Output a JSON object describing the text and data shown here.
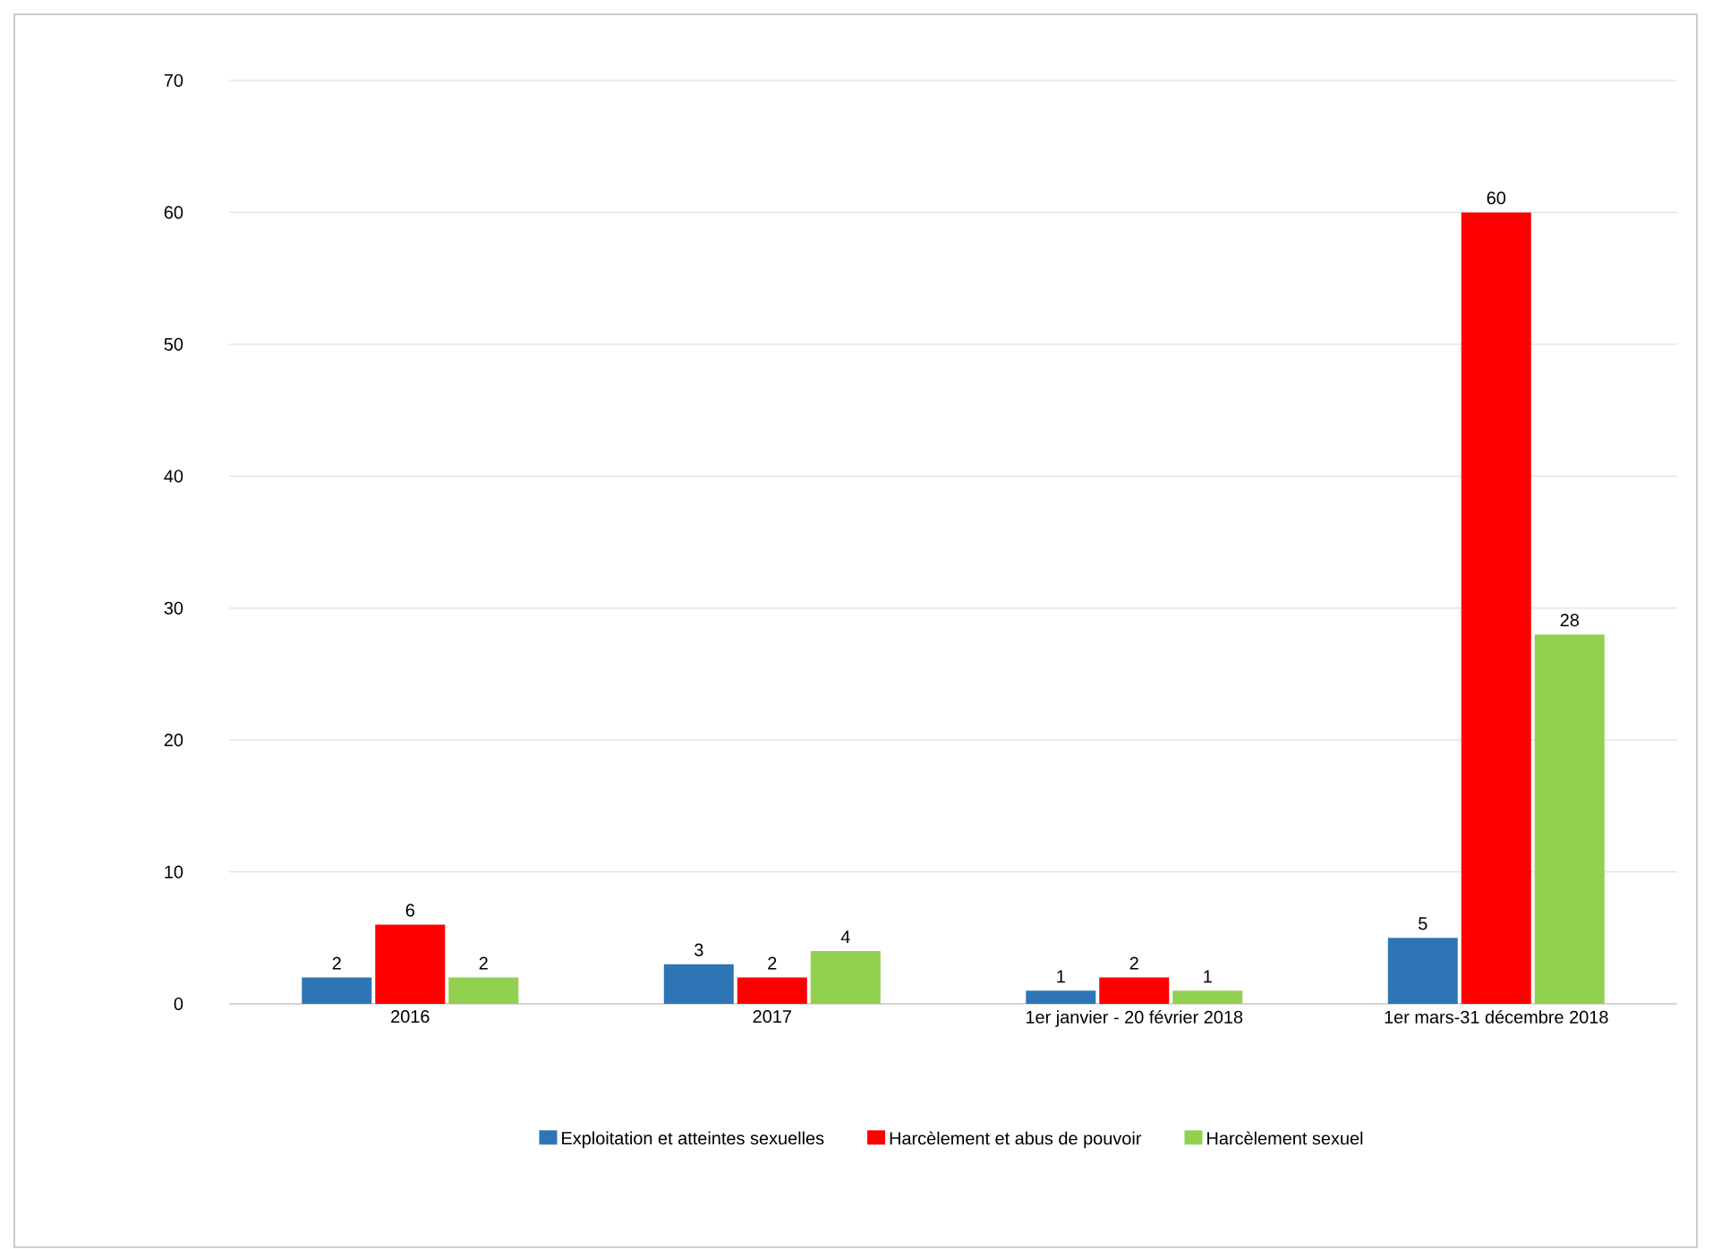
{
  "chart_data": {
    "type": "bar",
    "categories": [
      "2016",
      "2017",
      "1er janvier - 20 février 2018",
      "1er mars-31 décembre 2018"
    ],
    "series": [
      {
        "name": "Exploitation et atteintes sexuelles",
        "color": "#2e75b6",
        "values": [
          2,
          3,
          1,
          5
        ]
      },
      {
        "name": "Harcèlement et abus de pouvoir",
        "color": "#ff0000",
        "values": [
          6,
          2,
          2,
          60
        ]
      },
      {
        "name": "Harcèlement sexuel",
        "color": "#92d050",
        "values": [
          2,
          4,
          1,
          28
        ]
      }
    ],
    "ylim": [
      0,
      70
    ],
    "yticks": [
      0,
      10,
      20,
      30,
      40,
      50,
      60,
      70
    ],
    "grid": "y",
    "legend": "bottom",
    "data_labels": true
  }
}
